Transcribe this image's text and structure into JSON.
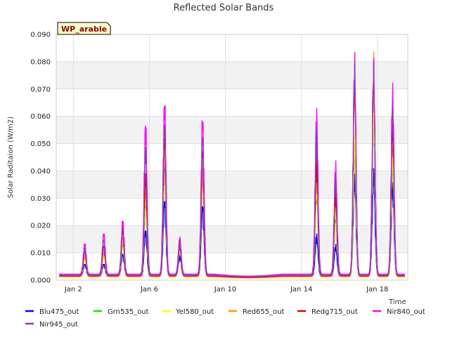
{
  "chart_data": {
    "type": "line",
    "title": "Reflected Solar Bands",
    "xlabel": "Time",
    "ylabel": "Solar Raditaion (W/m2)",
    "station_label": "WP_arable",
    "xlim": [
      1.1,
      19.6
    ],
    "ylim": [
      0,
      0.09
    ],
    "x_unit": "day of January",
    "xticks": [
      {
        "value": 2,
        "label": "Jan 2"
      },
      {
        "value": 6,
        "label": "Jan 6"
      },
      {
        "value": 10,
        "label": "Jan 10"
      },
      {
        "value": 14,
        "label": "Jan 14"
      },
      {
        "value": 18,
        "label": "Jan 18"
      }
    ],
    "yticks": [
      {
        "value": 0,
        "label": "0.000"
      },
      {
        "value": 0.01,
        "label": "0.010"
      },
      {
        "value": 0.02,
        "label": "0.020"
      },
      {
        "value": 0.03,
        "label": "0.030"
      },
      {
        "value": 0.04,
        "label": "0.040"
      },
      {
        "value": 0.05,
        "label": "0.050"
      },
      {
        "value": 0.06,
        "label": "0.060"
      },
      {
        "value": 0.07,
        "label": "0.070"
      },
      {
        "value": 0.08,
        "label": "0.080"
      },
      {
        "value": 0.09,
        "label": "0.090"
      }
    ],
    "grid": true,
    "legend_position": "bottom",
    "series": [
      {
        "name": "Blu475_out",
        "color": "#0000ff",
        "base": 0.0012,
        "peaks": [
          0.005,
          0.005,
          0.009,
          0.018,
          0.03,
          0.008,
          0.028,
          0.016,
          0.012,
          0.038,
          0.04,
          0.035
        ]
      },
      {
        "name": "Grn535_out",
        "color": "#00ee00",
        "base": 0.0012,
        "peaks": [
          0.008,
          0.009,
          0.013,
          0.03,
          0.045,
          0.011,
          0.045,
          0.035,
          0.025,
          0.05,
          0.063,
          0.045
        ]
      },
      {
        "name": "Yel580_out",
        "color": "#ffff00",
        "base": 0.0011,
        "peaks": [
          0.008,
          0.009,
          0.014,
          0.032,
          0.048,
          0.012,
          0.047,
          0.037,
          0.027,
          0.053,
          0.065,
          0.048
        ]
      },
      {
        "name": "Red655_out",
        "color": "#ff9900",
        "base": 0.0014,
        "peaks": [
          0.009,
          0.011,
          0.016,
          0.035,
          0.052,
          0.012,
          0.042,
          0.04,
          0.03,
          0.075,
          0.083,
          0.055
        ]
      },
      {
        "name": "Redg715_out",
        "color": "#dd0000",
        "base": 0.0015,
        "peaks": [
          0.01,
          0.012,
          0.018,
          0.04,
          0.055,
          0.013,
          0.05,
          0.045,
          0.032,
          0.078,
          0.08,
          0.06
        ]
      },
      {
        "name": "Nir840_out",
        "color": "#ff00ff",
        "base": 0.0022,
        "peaks": [
          0.012,
          0.016,
          0.021,
          0.058,
          0.067,
          0.014,
          0.061,
          0.062,
          0.042,
          0.082,
          0.08,
          0.071
        ]
      },
      {
        "name": "Nir945_out",
        "color": "#9932cc",
        "base": 0.0018,
        "peaks": [
          0.011,
          0.014,
          0.019,
          0.05,
          0.06,
          0.013,
          0.055,
          0.055,
          0.038,
          0.08,
          0.079,
          0.065
        ]
      }
    ],
    "peak_days": [
      2.6,
      3.6,
      4.6,
      5.8,
      6.8,
      7.6,
      8.8,
      14.8,
      15.8,
      16.8,
      17.8,
      18.8
    ],
    "gap": [
      9.4,
      13.0
    ]
  }
}
